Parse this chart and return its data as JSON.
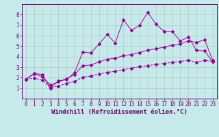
{
  "background_color": "#c6eaea",
  "grid_color": "#b0c8c8",
  "line_color": "#990099",
  "xlim": [
    -0.5,
    23.5
  ],
  "ylim": [
    0,
    9
  ],
  "xticks": [
    0,
    1,
    2,
    3,
    4,
    5,
    6,
    7,
    8,
    9,
    10,
    11,
    12,
    13,
    14,
    15,
    16,
    17,
    18,
    19,
    20,
    21,
    22,
    23
  ],
  "yticks": [
    1,
    2,
    3,
    4,
    5,
    6,
    7,
    8
  ],
  "xlabel": "Windchill (Refroidissement éolien,°C)",
  "series1_x": [
    0,
    1,
    2,
    3,
    4,
    5,
    6,
    7,
    8,
    9,
    10,
    11,
    12,
    13,
    14,
    15,
    16,
    17,
    18,
    19,
    20,
    21,
    22,
    23
  ],
  "series1_y": [
    1.85,
    2.4,
    2.3,
    1.0,
    1.7,
    1.8,
    2.5,
    4.45,
    4.35,
    5.2,
    6.1,
    5.3,
    7.5,
    6.5,
    7.0,
    8.2,
    7.1,
    6.4,
    6.4,
    5.5,
    5.85,
    4.6,
    4.55,
    3.5
  ],
  "series2_x": [
    0,
    1,
    2,
    3,
    4,
    5,
    6,
    7,
    8,
    9,
    10,
    11,
    12,
    13,
    14,
    15,
    16,
    17,
    18,
    19,
    20,
    21,
    22,
    23
  ],
  "series2_y": [
    1.85,
    2.35,
    2.1,
    1.3,
    1.6,
    1.9,
    2.3,
    3.15,
    3.2,
    3.5,
    3.75,
    3.85,
    4.1,
    4.2,
    4.4,
    4.6,
    4.75,
    4.9,
    5.1,
    5.2,
    5.5,
    5.35,
    5.6,
    3.65
  ],
  "series3_x": [
    0,
    1,
    2,
    3,
    4,
    5,
    6,
    7,
    8,
    9,
    10,
    11,
    12,
    13,
    14,
    15,
    16,
    17,
    18,
    19,
    20,
    21,
    22,
    23
  ],
  "series3_y": [
    1.85,
    1.95,
    1.75,
    1.05,
    1.2,
    1.45,
    1.65,
    2.05,
    2.15,
    2.35,
    2.5,
    2.6,
    2.75,
    2.9,
    3.05,
    3.15,
    3.25,
    3.35,
    3.45,
    3.55,
    3.65,
    3.45,
    3.65,
    3.55
  ],
  "tick_fontsize": 5.5,
  "xlabel_fontsize": 6.5,
  "marker": "D",
  "markersize": 2.0,
  "linewidth": 0.7
}
